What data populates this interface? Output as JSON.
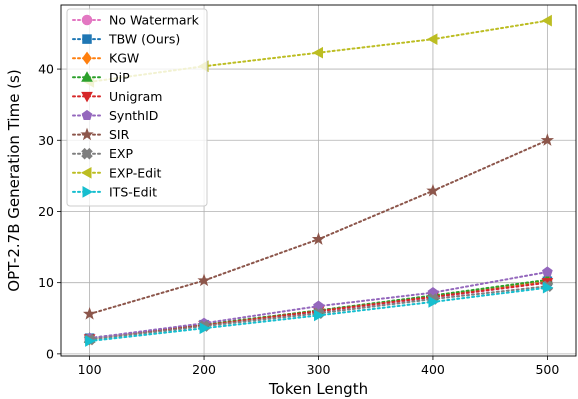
{
  "chart_data": {
    "type": "line",
    "title": "",
    "xlabel": "Token Length",
    "ylabel": "OPT-2.7B Generation Time (s)",
    "x": [
      100,
      200,
      300,
      400,
      500
    ],
    "xlim": [
      75,
      525
    ],
    "ylim": [
      -0.3,
      49
    ],
    "xticks": [
      100,
      200,
      300,
      400,
      500
    ],
    "yticks": [
      0,
      10,
      20,
      30,
      40
    ],
    "grid": true,
    "legend_position": "top-left",
    "series": [
      {
        "name": "No Watermark",
        "color": "#e377c2",
        "marker": "circle",
        "values": [
          2.1,
          4.0,
          5.9,
          7.9,
          10.0
        ]
      },
      {
        "name": "TBW (Ours)",
        "color": "#1f77b4",
        "marker": "square",
        "values": [
          2.2,
          4.1,
          6.1,
          8.1,
          10.2
        ]
      },
      {
        "name": "KGW",
        "color": "#ff7f0e",
        "marker": "diamond",
        "values": [
          2.1,
          4.1,
          6.1,
          8.1,
          10.3
        ]
      },
      {
        "name": "DiP",
        "color": "#2ca02c",
        "marker": "triangle-up",
        "values": [
          2.2,
          4.1,
          6.1,
          8.2,
          10.4
        ]
      },
      {
        "name": "Unigram",
        "color": "#d62728",
        "marker": "triangle-down",
        "values": [
          2.1,
          4.0,
          6.0,
          8.0,
          10.0
        ]
      },
      {
        "name": "SynthID",
        "color": "#9467bd",
        "marker": "pentagon",
        "values": [
          2.2,
          4.3,
          6.7,
          8.6,
          11.5
        ]
      },
      {
        "name": "SIR",
        "color": "#8c564b",
        "marker": "star",
        "values": [
          5.6,
          10.3,
          16.1,
          22.9,
          30.0
        ]
      },
      {
        "name": "EXP",
        "color": "#7f7f7f",
        "marker": "x",
        "values": [
          2.0,
          3.9,
          5.7,
          7.7,
          9.5
        ]
      },
      {
        "name": "EXP-Edit",
        "color": "#bcbd22",
        "marker": "triangle-left",
        "values": [
          38.2,
          40.4,
          42.3,
          44.2,
          46.8
        ]
      },
      {
        "name": "ITS-Edit",
        "color": "#17becf",
        "marker": "triangle-right",
        "values": [
          1.8,
          3.6,
          5.4,
          7.3,
          9.3
        ]
      }
    ]
  }
}
